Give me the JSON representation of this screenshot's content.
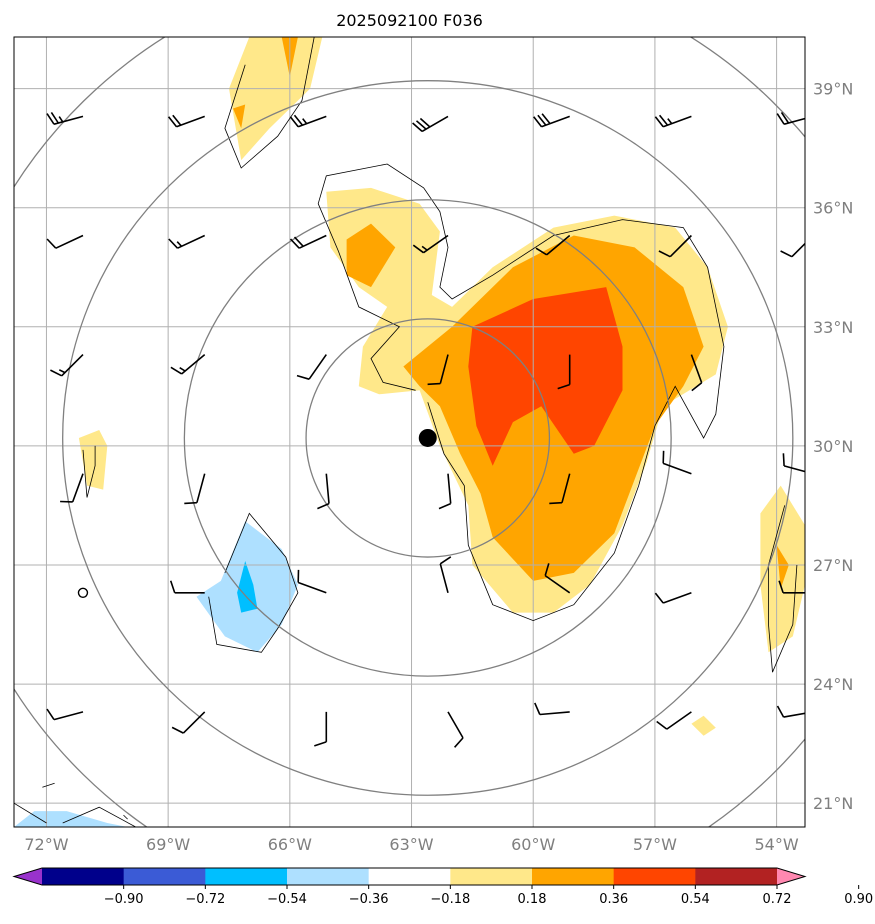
{
  "chart_data": {
    "type": "heatmap",
    "title": "2025092100 F036",
    "lon_range": [
      -72.8,
      -53.3
    ],
    "lat_range": [
      20.4,
      40.3
    ],
    "lon_ticks": [
      -72,
      -69,
      -66,
      -63,
      -60,
      -57,
      -54
    ],
    "lon_tick_labels": [
      "72°W",
      "69°W",
      "66°W",
      "63°W",
      "60°W",
      "57°W",
      "54°W"
    ],
    "lat_ticks": [
      21,
      24,
      27,
      30,
      33,
      36,
      39
    ],
    "lat_tick_labels": [
      "21°N",
      "24°N",
      "27°N",
      "30°N",
      "33°N",
      "36°N",
      "39°N"
    ],
    "grid": true,
    "center_marker": {
      "lon": -62.6,
      "lat": 30.2
    },
    "range_ring_radii_deg": [
      3,
      6,
      9,
      12
    ],
    "colorbar": {
      "levels": [
        -0.9,
        -0.72,
        -0.54,
        -0.36,
        -0.18,
        0.18,
        0.36,
        0.54,
        0.72,
        0.9
      ],
      "tick_labels": [
        "−0.90",
        "−0.72",
        "−0.54",
        "−0.36",
        "−0.18",
        "0.18",
        "0.36",
        "0.54",
        "0.72",
        "0.90"
      ],
      "colors": [
        "#9932cc",
        "#00008b",
        "#3b5bd6",
        "#00bfff",
        "#aee0ff",
        "#ffffff",
        "#ffe88a",
        "#ffa500",
        "#ff4500",
        "#b22222",
        "#ff88b0"
      ],
      "extend": "both"
    },
    "filled_regions": [
      {
        "level": 0.18,
        "color": "#ffe88a",
        "points": [
          [
            -65.1,
            36.4
          ],
          [
            -65.0,
            35.0
          ],
          [
            -64.3,
            34.0
          ],
          [
            -63.6,
            33.5
          ],
          [
            -64.2,
            32.5
          ],
          [
            -64.3,
            31.5
          ],
          [
            -63.8,
            31.3
          ],
          [
            -62.8,
            31.4
          ],
          [
            -62.3,
            30.0
          ],
          [
            -61.6,
            28.5
          ],
          [
            -61.5,
            27.0
          ],
          [
            -60.5,
            25.8
          ],
          [
            -59.5,
            25.8
          ],
          [
            -58.6,
            26.5
          ],
          [
            -57.8,
            28.0
          ],
          [
            -57.2,
            29.6
          ],
          [
            -56.8,
            31.0
          ],
          [
            -55.5,
            31.8
          ],
          [
            -55.2,
            33.0
          ],
          [
            -55.7,
            34.5
          ],
          [
            -56.5,
            35.5
          ],
          [
            -58.0,
            35.8
          ],
          [
            -59.5,
            35.5
          ],
          [
            -61.0,
            34.5
          ],
          [
            -62.0,
            33.5
          ],
          [
            -62.5,
            33.8
          ],
          [
            -62.3,
            35.4
          ],
          [
            -62.8,
            36.1
          ],
          [
            -64.0,
            36.5
          ]
        ]
      },
      {
        "level": 0.18,
        "color": "#ffe88a",
        "points": [
          [
            -67.5,
            39.0
          ],
          [
            -67.2,
            37.2
          ],
          [
            -66.5,
            38.0
          ],
          [
            -65.5,
            39.0
          ],
          [
            -65.2,
            40.3
          ],
          [
            -67.0,
            40.3
          ]
        ]
      },
      {
        "level": 0.18,
        "color": "#ffe88a",
        "points": [
          [
            -71.2,
            30.2
          ],
          [
            -71.0,
            29.0
          ],
          [
            -70.6,
            28.9
          ],
          [
            -70.5,
            30.0
          ],
          [
            -70.7,
            30.4
          ]
        ]
      },
      {
        "level": 0.18,
        "color": "#ffe88a",
        "points": [
          [
            -53.9,
            29.0
          ],
          [
            -54.4,
            28.3
          ],
          [
            -54.4,
            26.5
          ],
          [
            -54.2,
            24.8
          ],
          [
            -53.6,
            25.2
          ],
          [
            -53.3,
            26.5
          ],
          [
            -53.3,
            28.0
          ]
        ]
      },
      {
        "level": 0.18,
        "color": "#ffe88a",
        "points": [
          [
            -56.1,
            23.0
          ],
          [
            -55.8,
            22.7
          ],
          [
            -55.5,
            22.9
          ],
          [
            -55.8,
            23.2
          ]
        ]
      },
      {
        "level": 0.36,
        "color": "#ffa500",
        "points": [
          [
            -63.2,
            32.0
          ],
          [
            -62.0,
            33.0
          ],
          [
            -60.5,
            34.5
          ],
          [
            -59.0,
            35.3
          ],
          [
            -57.5,
            35.0
          ],
          [
            -56.3,
            34.0
          ],
          [
            -55.8,
            32.5
          ],
          [
            -56.3,
            31.5
          ],
          [
            -57.0,
            30.5
          ],
          [
            -58.0,
            27.8
          ],
          [
            -59.0,
            26.8
          ],
          [
            -60.0,
            26.6
          ],
          [
            -61.0,
            27.7
          ],
          [
            -61.3,
            28.8
          ],
          [
            -61.8,
            29.8
          ],
          [
            -62.3,
            31.0
          ],
          [
            -62.8,
            31.5
          ]
        ]
      },
      {
        "level": 0.36,
        "color": "#ffa500",
        "points": [
          [
            -64.6,
            35.2
          ],
          [
            -64.0,
            35.6
          ],
          [
            -63.4,
            35.0
          ],
          [
            -64.0,
            34.0
          ],
          [
            -64.6,
            34.3
          ]
        ]
      },
      {
        "level": 0.36,
        "color": "#ffa500",
        "points": [
          [
            -66.2,
            40.3
          ],
          [
            -66.0,
            39.3
          ],
          [
            -65.8,
            40.3
          ]
        ]
      },
      {
        "level": 0.36,
        "color": "#ffa500",
        "points": [
          [
            -67.4,
            38.5
          ],
          [
            -67.2,
            38.0
          ],
          [
            -67.1,
            38.6
          ]
        ]
      },
      {
        "level": 0.36,
        "color": "#ffa500",
        "points": [
          [
            -54.0,
            27.5
          ],
          [
            -53.9,
            26.4
          ],
          [
            -53.7,
            27.0
          ]
        ]
      },
      {
        "level": 0.54,
        "color": "#ff4500",
        "points": [
          [
            -61.5,
            33.0
          ],
          [
            -60.0,
            33.7
          ],
          [
            -58.2,
            34.0
          ],
          [
            -57.8,
            32.5
          ],
          [
            -57.8,
            31.4
          ],
          [
            -58.5,
            30.0
          ],
          [
            -59.0,
            29.8
          ],
          [
            -59.8,
            31.0
          ],
          [
            -60.5,
            30.6
          ],
          [
            -61.0,
            29.5
          ],
          [
            -61.4,
            30.5
          ],
          [
            -61.6,
            32.0
          ]
        ]
      },
      {
        "level": -0.18,
        "color": "#aee0ff",
        "points": [
          [
            -67.7,
            26.6
          ],
          [
            -67.1,
            28.1
          ],
          [
            -66.2,
            27.4
          ],
          [
            -65.8,
            26.5
          ],
          [
            -66.2,
            25.5
          ],
          [
            -66.8,
            24.8
          ],
          [
            -67.6,
            25.2
          ],
          [
            -68.3,
            26.2
          ]
        ]
      },
      {
        "level": -0.18,
        "color": "#aee0ff",
        "points": [
          [
            -72.8,
            20.4
          ],
          [
            -72.3,
            20.8
          ],
          [
            -71.5,
            20.8
          ],
          [
            -70.5,
            20.5
          ],
          [
            -70.0,
            20.4
          ]
        ]
      },
      {
        "level": -0.36,
        "color": "#00bfff",
        "points": [
          [
            -67.1,
            27.1
          ],
          [
            -66.9,
            26.5
          ],
          [
            -66.8,
            25.9
          ],
          [
            -67.2,
            25.8
          ],
          [
            -67.3,
            26.3
          ]
        ]
      }
    ],
    "contour_lines": [
      [
        [
          -62.6,
          31.1
        ],
        [
          -62.2,
          29.8
        ],
        [
          -61.7,
          29.0
        ],
        [
          -61.6,
          27.5
        ],
        [
          -61.0,
          26.0
        ],
        [
          -60.0,
          25.6
        ],
        [
          -59.0,
          26.0
        ],
        [
          -58.0,
          27.3
        ],
        [
          -57.4,
          29.0
        ],
        [
          -57.0,
          30.5
        ],
        [
          -56.5,
          31.5
        ],
        [
          -55.8,
          30.2
        ],
        [
          -55.5,
          30.8
        ],
        [
          -55.3,
          32.5
        ],
        [
          -55.7,
          34.5
        ],
        [
          -56.3,
          35.5
        ],
        [
          -57.8,
          35.7
        ],
        [
          -59.5,
          35.3
        ],
        [
          -61.0,
          34.3
        ],
        [
          -62.0,
          33.7
        ],
        [
          -62.3,
          34.0
        ],
        [
          -62.1,
          35.0
        ],
        [
          -62.3,
          35.9
        ],
        [
          -62.7,
          36.5
        ],
        [
          -63.6,
          37.1
        ],
        [
          -65.1,
          36.8
        ],
        [
          -65.3,
          36.1
        ],
        [
          -64.8,
          34.9
        ],
        [
          -64.3,
          33.5
        ],
        [
          -63.3,
          33.0
        ],
        [
          -64.0,
          32.2
        ],
        [
          -63.7,
          31.6
        ],
        [
          -62.9,
          31.4
        ]
      ],
      [
        [
          -67.1,
          39.6
        ],
        [
          -67.6,
          38.0
        ],
        [
          -67.2,
          37.0
        ],
        [
          -66.3,
          37.8
        ],
        [
          -65.7,
          38.7
        ],
        [
          -65.4,
          40.3
        ]
      ],
      [
        [
          -71.1,
          29.9
        ],
        [
          -71.0,
          28.7
        ],
        [
          -70.8,
          29.5
        ],
        [
          -70.8,
          30.0
        ]
      ],
      [
        [
          -53.8,
          28.5
        ],
        [
          -54.2,
          27.0
        ],
        [
          -54.2,
          25.5
        ],
        [
          -54.1,
          24.3
        ],
        [
          -53.6,
          25.5
        ],
        [
          -53.5,
          27.0
        ]
      ],
      [
        [
          -67.6,
          26.8
        ],
        [
          -67.0,
          28.3
        ],
        [
          -66.1,
          27.2
        ],
        [
          -65.8,
          26.3
        ],
        [
          -66.3,
          25.4
        ],
        [
          -66.7,
          24.8
        ],
        [
          -67.8,
          25.0
        ],
        [
          -68.0,
          26.2
        ]
      ],
      [
        [
          -72.8,
          21.0
        ],
        [
          -72.0,
          20.5
        ]
      ],
      [
        [
          -71.6,
          20.5
        ],
        [
          -70.7,
          20.9
        ],
        [
          -69.8,
          20.4
        ]
      ],
      [
        [
          -72.1,
          21.4
        ],
        [
          -71.8,
          21.5
        ]
      ],
      [
        [
          -70.1,
          20.7
        ],
        [
          -70.0,
          20.6
        ]
      ]
    ],
    "wind_barbs": [
      {
        "lon": -71.1,
        "lat": 38.3,
        "dir": 255,
        "spd": 25
      },
      {
        "lon": -68.1,
        "lat": 38.3,
        "dir": 250,
        "spd": 20
      },
      {
        "lon": -65.1,
        "lat": 38.3,
        "dir": 250,
        "spd": 25
      },
      {
        "lon": -62.1,
        "lat": 38.3,
        "dir": 240,
        "spd": 30
      },
      {
        "lon": -59.1,
        "lat": 38.3,
        "dir": 250,
        "spd": 30
      },
      {
        "lon": -56.1,
        "lat": 38.3,
        "dir": 250,
        "spd": 25
      },
      {
        "lon": -53.1,
        "lat": 38.3,
        "dir": 255,
        "spd": 20
      },
      {
        "lon": -71.1,
        "lat": 35.3,
        "dir": 245,
        "spd": 10
      },
      {
        "lon": -68.1,
        "lat": 35.3,
        "dir": 245,
        "spd": 15
      },
      {
        "lon": -65.1,
        "lat": 35.3,
        "dir": 245,
        "spd": 20
      },
      {
        "lon": -62.1,
        "lat": 35.3,
        "dir": 235,
        "spd": 15
      },
      {
        "lon": -59.1,
        "lat": 35.3,
        "dir": 230,
        "spd": 10
      },
      {
        "lon": -56.1,
        "lat": 35.3,
        "dir": 225,
        "spd": 10
      },
      {
        "lon": -53.1,
        "lat": 35.3,
        "dir": 225,
        "spd": 10
      },
      {
        "lon": -71.1,
        "lat": 32.3,
        "dir": 225,
        "spd": 15
      },
      {
        "lon": -68.1,
        "lat": 32.3,
        "dir": 230,
        "spd": 15
      },
      {
        "lon": -65.1,
        "lat": 32.3,
        "dir": 215,
        "spd": 10
      },
      {
        "lon": -62.1,
        "lat": 32.3,
        "dir": 195,
        "spd": 10
      },
      {
        "lon": -59.1,
        "lat": 32.3,
        "dir": 180,
        "spd": 10
      },
      {
        "lon": -56.1,
        "lat": 32.3,
        "dir": 160,
        "spd": 10
      },
      {
        "lon": -53.1,
        "lat": 32.3,
        "dir": 160,
        "spd": 10
      },
      {
        "lon": -71.1,
        "lat": 29.3,
        "dir": 200,
        "spd": 10
      },
      {
        "lon": -68.1,
        "lat": 29.3,
        "dir": 195,
        "spd": 10
      },
      {
        "lon": -65.1,
        "lat": 29.3,
        "dir": 175,
        "spd": 10
      },
      {
        "lon": -62.1,
        "lat": 29.3,
        "dir": 175,
        "spd": 10
      },
      {
        "lon": -59.1,
        "lat": 29.3,
        "dir": 195,
        "spd": 10
      },
      {
        "lon": -56.1,
        "lat": 29.3,
        "dir": 290,
        "spd": 10
      },
      {
        "lon": -53.1,
        "lat": 29.3,
        "dir": 285,
        "spd": 10
      },
      {
        "lon": -71.1,
        "lat": 26.3,
        "dir": 0,
        "spd": 0
      },
      {
        "lon": -68.1,
        "lat": 26.3,
        "dir": 270,
        "spd": 10
      },
      {
        "lon": -65.1,
        "lat": 26.3,
        "dir": 290,
        "spd": 10
      },
      {
        "lon": -62.1,
        "lat": 26.3,
        "dir": 345,
        "spd": 10
      },
      {
        "lon": -59.1,
        "lat": 26.3,
        "dir": 305,
        "spd": 10
      },
      {
        "lon": -56.1,
        "lat": 26.3,
        "dir": 250,
        "spd": 10
      },
      {
        "lon": -53.1,
        "lat": 26.3,
        "dir": 270,
        "spd": 10
      },
      {
        "lon": -71.1,
        "lat": 23.3,
        "dir": 255,
        "spd": 10
      },
      {
        "lon": -68.1,
        "lat": 23.3,
        "dir": 225,
        "spd": 10
      },
      {
        "lon": -65.1,
        "lat": 23.3,
        "dir": 180,
        "spd": 10
      },
      {
        "lon": -62.1,
        "lat": 23.3,
        "dir": 150,
        "spd": 10
      },
      {
        "lon": -59.1,
        "lat": 23.3,
        "dir": 265,
        "spd": 10
      },
      {
        "lon": -56.1,
        "lat": 23.3,
        "dir": 235,
        "spd": 10
      },
      {
        "lon": -53.1,
        "lat": 23.3,
        "dir": 260,
        "spd": 10
      }
    ]
  }
}
